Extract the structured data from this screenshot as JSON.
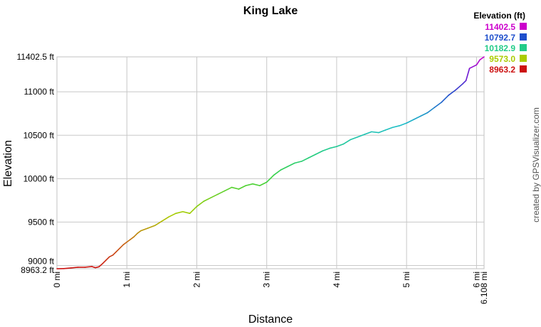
{
  "chart_data": {
    "type": "line",
    "title": "King Lake",
    "xlabel": "Distance",
    "ylabel": "Elevation",
    "xlim": [
      0,
      6.108
    ],
    "ylim": [
      8963.2,
      11402.5
    ],
    "x_ticks": [
      0,
      1,
      2,
      3,
      4,
      5,
      6,
      6.108
    ],
    "x_tick_labels": [
      "0 mi",
      "1 mi",
      "2 mi",
      "3 mi",
      "4 mi",
      "5 mi",
      "6 mi",
      "6.108 mi"
    ],
    "y_ticks": [
      8963.2,
      9000,
      9500,
      10000,
      10500,
      11000,
      11402.5
    ],
    "y_tick_labels": [
      "8963.2 ft",
      "9000 ft",
      "9500 ft",
      "10000 ft",
      "10500 ft",
      "11000 ft",
      "11402.5 ft"
    ],
    "grid": true,
    "legend": {
      "title": "Elevation (ft)",
      "placement": "top-right",
      "entries": [
        {
          "label": "11402.5",
          "color": "#cc00cc"
        },
        {
          "label": "10792.7",
          "color": "#1f4fcc"
        },
        {
          "label": "10182.9",
          "color": "#22cc88"
        },
        {
          "label": "9573.0",
          "color": "#aacc00"
        },
        {
          "label": "8963.2",
          "color": "#cc1111"
        }
      ]
    },
    "credit": "created by GPSVisualizer.com",
    "series": [
      {
        "x": [
          0,
          0.1,
          0.2,
          0.3,
          0.4,
          0.5,
          0.55,
          0.6,
          0.65,
          0.7,
          0.75,
          0.8,
          0.85,
          0.9,
          0.95,
          1.0,
          1.05,
          1.1,
          1.15,
          1.2,
          1.3,
          1.4,
          1.5,
          1.6,
          1.7,
          1.8,
          1.9,
          1.95,
          2.0,
          2.1,
          2.2,
          2.3,
          2.4,
          2.5,
          2.6,
          2.7,
          2.8,
          2.9,
          3.0,
          3.1,
          3.2,
          3.3,
          3.4,
          3.5,
          3.6,
          3.7,
          3.8,
          3.9,
          4.0,
          4.1,
          4.2,
          4.3,
          4.4,
          4.5,
          4.6,
          4.7,
          4.8,
          4.9,
          5.0,
          5.1,
          5.2,
          5.3,
          5.4,
          5.5,
          5.6,
          5.7,
          5.8,
          5.85,
          5.9,
          6.0,
          6.05,
          6.108
        ],
        "y": [
          8963,
          8965,
          8972,
          8980,
          8980,
          8988,
          8975,
          8985,
          9020,
          9060,
          9100,
          9120,
          9160,
          9200,
          9240,
          9270,
          9300,
          9330,
          9370,
          9400,
          9430,
          9460,
          9510,
          9560,
          9600,
          9620,
          9600,
          9640,
          9680,
          9740,
          9780,
          9820,
          9860,
          9900,
          9880,
          9920,
          9940,
          9920,
          9960,
          10040,
          10100,
          10140,
          10180,
          10200,
          10240,
          10280,
          10320,
          10350,
          10370,
          10400,
          10450,
          10480,
          10510,
          10540,
          10530,
          10560,
          10590,
          10610,
          10640,
          10680,
          10720,
          10760,
          10820,
          10880,
          10960,
          11020,
          11090,
          11130,
          11270,
          11310,
          11370,
          11402.5
        ]
      }
    ]
  }
}
